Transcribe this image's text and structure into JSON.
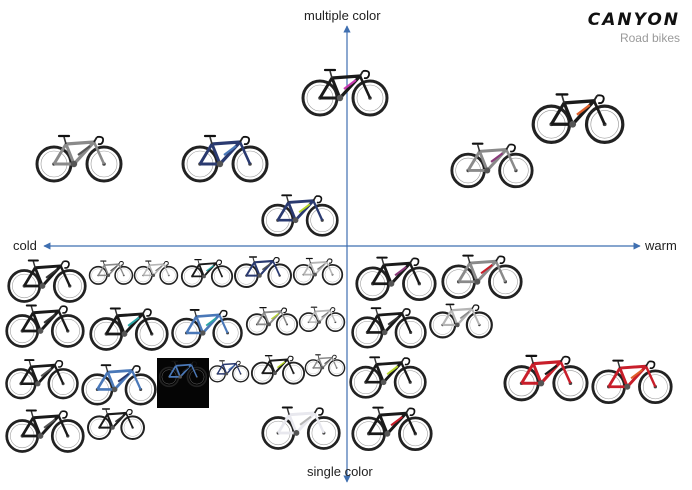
{
  "brand": {
    "logo": "CANYON",
    "subtitle": "Road bikes"
  },
  "axes": {
    "top": "multiple color",
    "bottom": "single color",
    "left": "cold",
    "right": "warm"
  },
  "colors": {
    "axis": "#3f6fb0",
    "frame_dark": "#1a1a1a",
    "frame_grey": "#8a8a8a",
    "frame_silver": "#b5b5b5",
    "frame_blue": "#4a78b8",
    "frame_navy": "#2a3a70",
    "frame_teal": "#2aa6a6",
    "frame_lime": "#b8d82a",
    "frame_red": "#c81e2a",
    "frame_purple": "#8a3a7a",
    "frame_white": "#e8e8ee",
    "frame_orange": "#e0602a",
    "frame_maroon": "#8a2a2a"
  },
  "bikes": [
    {
      "id": "top-center",
      "frame": "#1a1a1a",
      "accent": "#c83ab0"
    },
    {
      "id": "upper-left-1",
      "frame": "#8a8a8a",
      "accent": "#555"
    },
    {
      "id": "upper-left-2",
      "frame": "#2a3a70",
      "accent": "#4a78b8"
    },
    {
      "id": "center-above-axis",
      "frame": "#2a3a70",
      "accent": "#b8d82a"
    },
    {
      "id": "upper-right-1",
      "frame": "#1a1a1a",
      "accent": "#e0602a"
    },
    {
      "id": "upper-right-2",
      "frame": "#8a8a8a",
      "accent": "#8a3a7a"
    },
    {
      "id": "grid-r1-1",
      "frame": "#1a1a1a",
      "accent": "#333"
    },
    {
      "id": "grid-r1-2",
      "frame": "#8a8a8a",
      "accent": "#555"
    },
    {
      "id": "grid-r1-3",
      "frame": "#b5b5b5",
      "accent": "#777"
    },
    {
      "id": "grid-r1-4",
      "frame": "#1a1a1a",
      "accent": "#2aa6a6"
    },
    {
      "id": "grid-r1-5",
      "frame": "#2a3a70",
      "accent": "#555"
    },
    {
      "id": "grid-r1-6",
      "frame": "#b5b5b5",
      "accent": "#777"
    },
    {
      "id": "grid-r2-1",
      "frame": "#1a1a1a",
      "accent": "#333"
    },
    {
      "id": "grid-r2-2",
      "frame": "#1a1a1a",
      "accent": "#2aa6a6"
    },
    {
      "id": "grid-r2-3",
      "frame": "#4a78b8",
      "accent": "#2aa6a6"
    },
    {
      "id": "grid-r2-4",
      "frame": "#8a8a8a",
      "accent": "#b8d82a"
    },
    {
      "id": "grid-r2-5",
      "frame": "#b5b5b5",
      "accent": "#777"
    },
    {
      "id": "grid-r3-1",
      "frame": "#1a1a1a",
      "accent": "#555"
    },
    {
      "id": "grid-r3-2",
      "frame": "#4a78b8",
      "accent": "#2a3a70"
    },
    {
      "id": "grid-r3-3",
      "frame": "#4a78b8",
      "accent": "#1a1a1a"
    },
    {
      "id": "grid-r3-4",
      "frame": "#2a3a70",
      "accent": "#4a78b8"
    },
    {
      "id": "grid-r3-5",
      "frame": "#1a1a1a",
      "accent": "#b8d82a"
    },
    {
      "id": "grid-r3-6",
      "frame": "#8a8a8a",
      "accent": "#555"
    },
    {
      "id": "grid-r4-1",
      "frame": "#1a1a1a",
      "accent": "#555"
    },
    {
      "id": "grid-r4-2",
      "frame": "#1a1a1a",
      "accent": "#333"
    },
    {
      "id": "grid-r4-3",
      "frame": "#e8e8ee",
      "accent": "#b5b5b5"
    },
    {
      "id": "warm-r1-1",
      "frame": "#1a1a1a",
      "accent": "#8a3a7a"
    },
    {
      "id": "warm-r1-2",
      "frame": "#8a8a8a",
      "accent": "#c81e2a"
    },
    {
      "id": "warm-r2-1",
      "frame": "#1a1a1a",
      "accent": "#333"
    },
    {
      "id": "warm-r2-2",
      "frame": "#b5b5b5",
      "accent": "#8a8a8a"
    },
    {
      "id": "warm-r3-1",
      "frame": "#1a1a1a",
      "accent": "#b8d82a"
    },
    {
      "id": "warm-r3-2",
      "frame": "#c81e2a",
      "accent": "#1a1a1a"
    },
    {
      "id": "warm-r3-3",
      "frame": "#c81e2a",
      "accent": "#e0602a"
    },
    {
      "id": "warm-r4-1",
      "frame": "#1a1a1a",
      "accent": "#c81e2a"
    }
  ]
}
